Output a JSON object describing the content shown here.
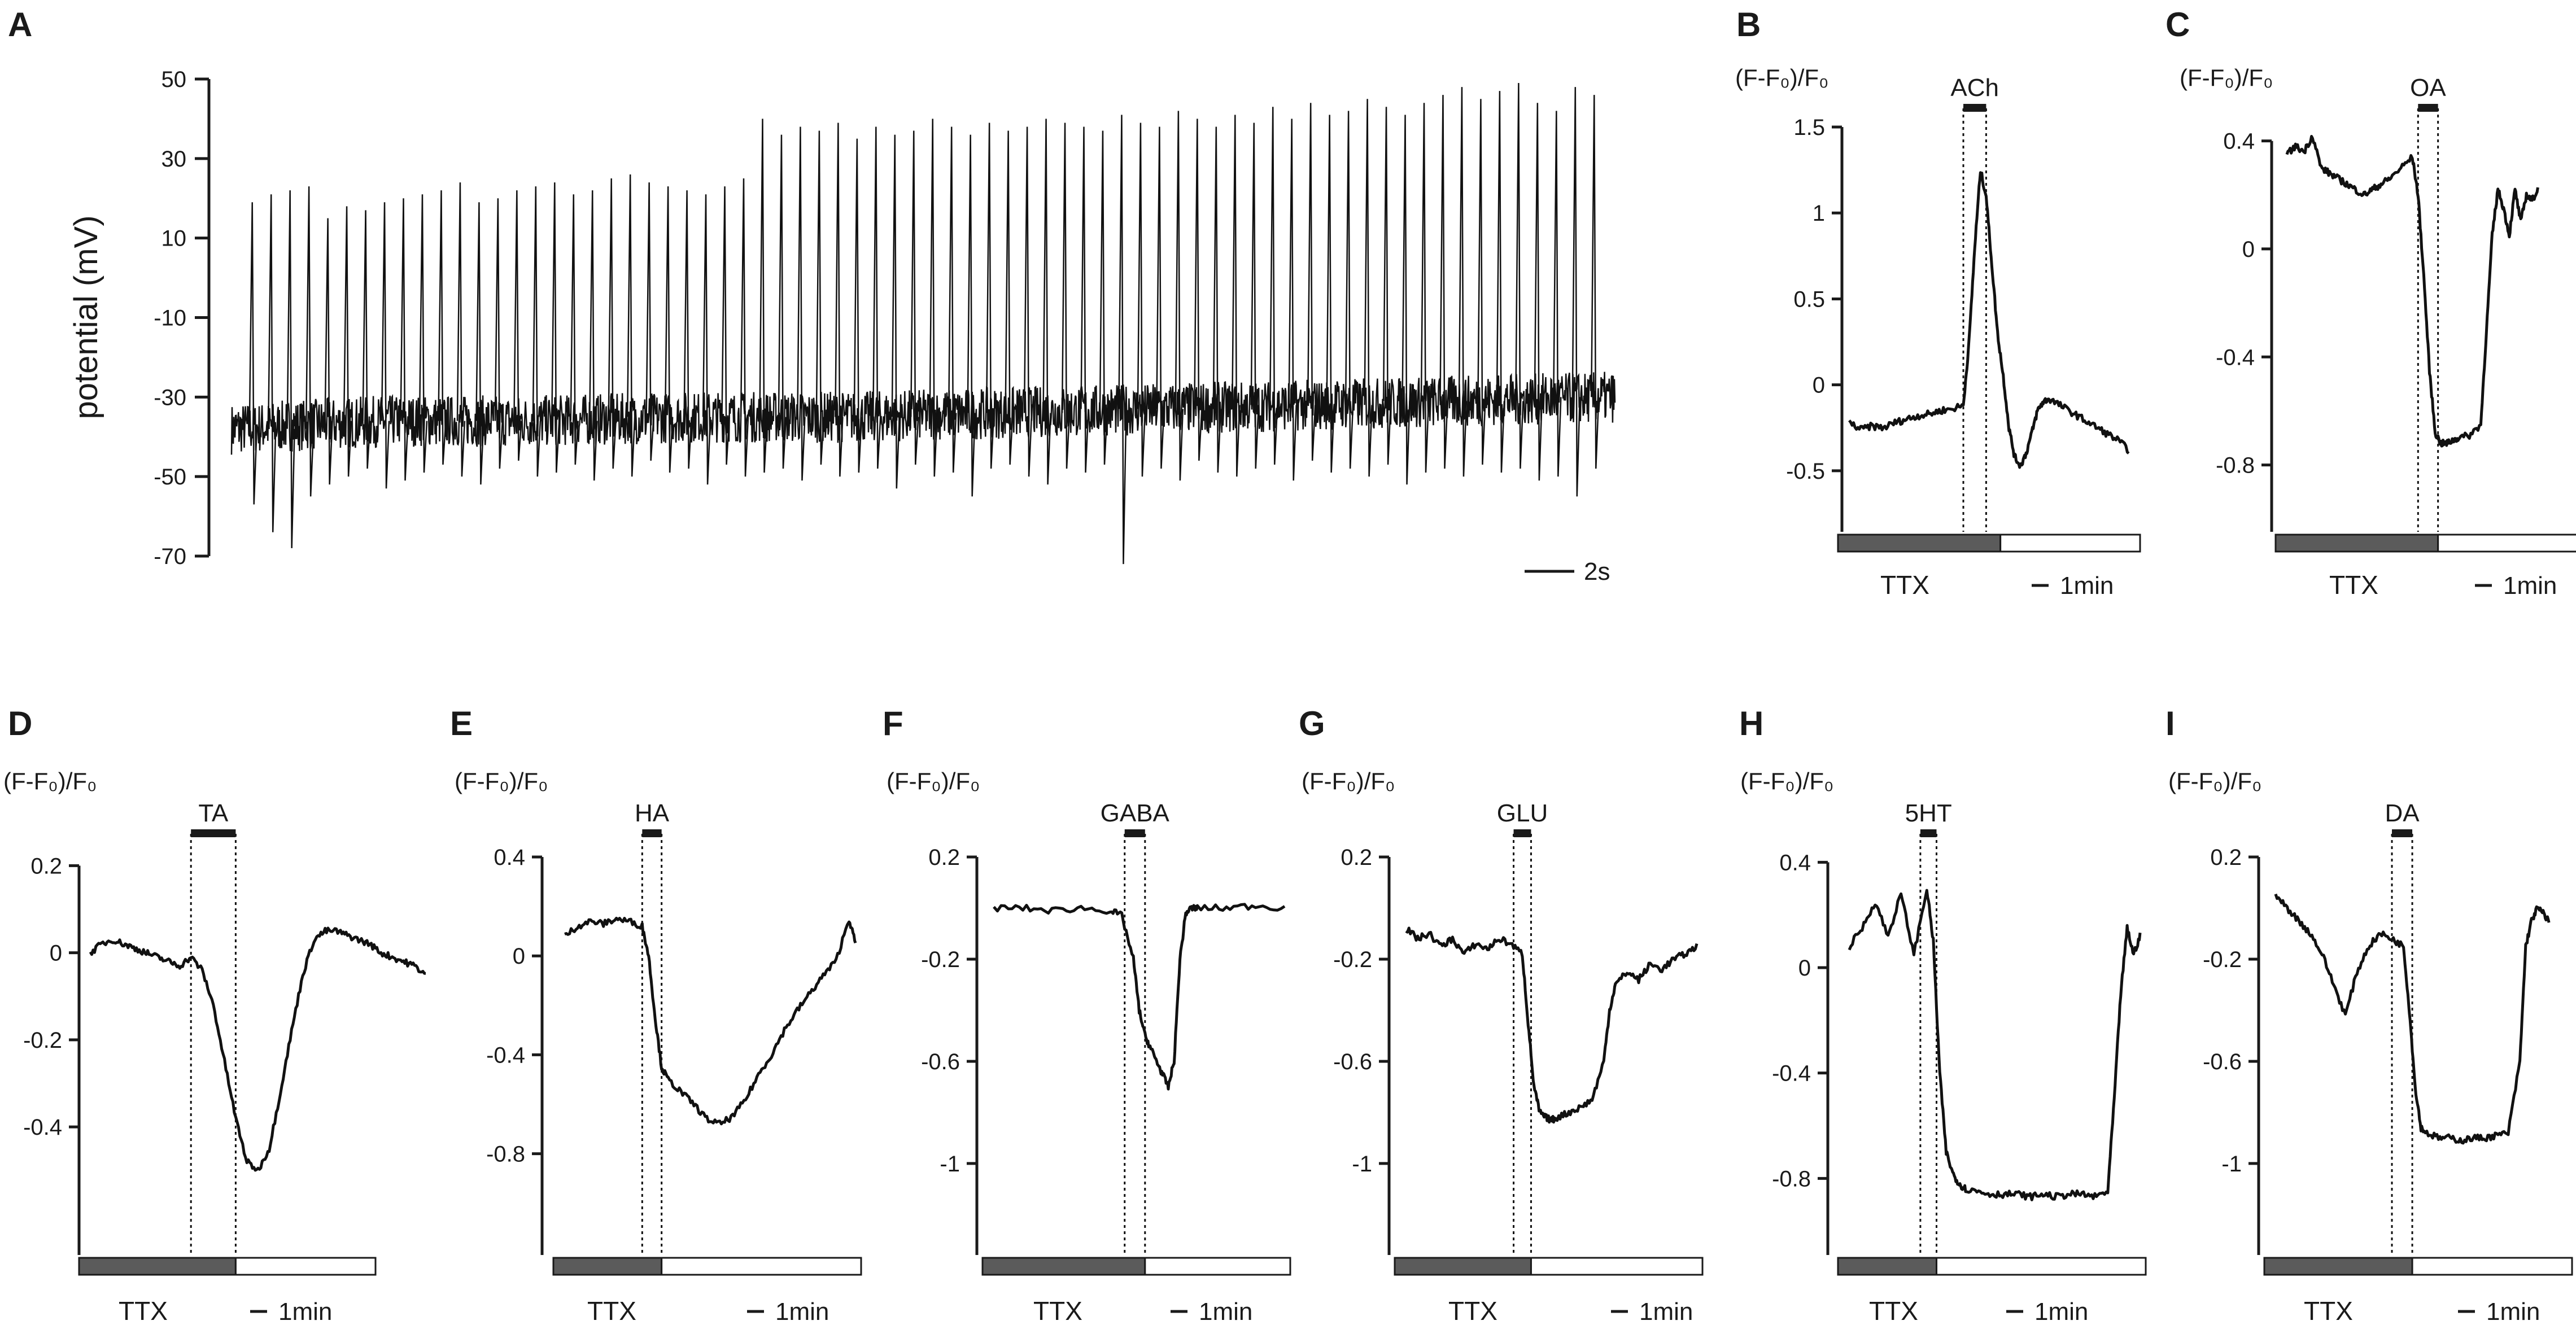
{
  "chart_data": [
    {
      "panel": "A",
      "type": "line",
      "ylabel": "potential (mV)",
      "yticks": [
        50,
        30,
        10,
        -10,
        -30,
        -50,
        -70
      ],
      "ylim": [
        -70,
        50
      ],
      "scale_bar": "2s",
      "baseline_mV": [
        -38,
        -36,
        -36,
        -35,
        -35,
        -34,
        -33,
        -32,
        -31,
        -30
      ],
      "spike_peaks_mV": [
        19,
        21,
        22,
        23,
        15,
        18,
        17,
        19,
        20,
        21,
        22,
        24,
        19,
        20,
        22,
        23,
        24,
        21,
        22,
        25,
        26,
        24,
        23,
        22,
        21,
        23,
        25,
        40,
        36,
        38,
        37,
        39,
        35,
        38,
        36,
        37,
        40,
        38,
        36,
        39,
        37,
        38,
        40,
        39,
        38,
        37,
        41,
        39,
        38,
        42,
        40,
        38,
        41,
        39,
        43,
        40,
        44,
        41,
        42,
        45,
        43,
        41,
        44,
        46,
        48,
        45,
        47,
        49,
        44,
        42,
        48,
        46
      ],
      "spike_troughs_mV": [
        -57,
        -64,
        -68,
        -55,
        -52,
        -50,
        -48,
        -53,
        -51,
        -49,
        -47,
        -50,
        -52,
        -48,
        -46,
        -50,
        -49,
        -47,
        -51,
        -48,
        -50,
        -46,
        -49,
        -48,
        -52,
        -47,
        -50,
        -49,
        -48,
        -51,
        -47,
        -50,
        -49,
        -48,
        -53,
        -47,
        -50,
        -49,
        -55,
        -48,
        -47,
        -50,
        -52,
        -48,
        -49,
        -47,
        -72,
        -50,
        -48,
        -51,
        -46,
        -49,
        -50,
        -48,
        -47,
        -51,
        -46,
        -49,
        -48,
        -50,
        -47,
        -52,
        -49,
        -48,
        -50,
        -47,
        -49,
        -48,
        -51,
        -50,
        -55,
        -48
      ]
    },
    {
      "panel": "B",
      "type": "line",
      "ylabel": "(F-F₀)/F₀",
      "drug": "ACh",
      "yticks": [
        1.5,
        1.0,
        0.5,
        0,
        -0.5
      ],
      "ylim": [
        -0.75,
        1.5
      ],
      "ttx_label": "TTX",
      "scale_bar": "1min",
      "t": [
        0,
        4,
        8,
        12,
        16,
        20,
        24,
        28,
        32,
        36,
        40,
        42,
        44,
        46,
        48,
        50,
        52,
        54,
        56,
        58,
        60,
        62,
        64,
        66,
        68,
        70,
        74,
        78,
        82,
        86,
        90,
        94,
        98
      ],
      "y": [
        -0.22,
        -0.26,
        -0.24,
        -0.25,
        -0.22,
        -0.2,
        -0.18,
        -0.17,
        -0.15,
        -0.14,
        -0.12,
        0.25,
        0.8,
        1.25,
        1.1,
        0.7,
        0.3,
        0.05,
        -0.25,
        -0.42,
        -0.47,
        -0.4,
        -0.28,
        -0.15,
        -0.1,
        -0.08,
        -0.12,
        -0.16,
        -0.2,
        -0.24,
        -0.28,
        -0.32,
        -0.38
      ],
      "drug_window": [
        40,
        48
      ],
      "ttx_end": 53,
      "t_max": 100
    },
    {
      "panel": "C",
      "type": "line",
      "ylabel": "(F-F₀)/F₀",
      "drug": "OA",
      "yticks": [
        0.4,
        0,
        -0.4,
        -0.8
      ],
      "ylim": [
        -0.97,
        0.42
      ],
      "ttx_label": "TTX",
      "scale_bar": "1min",
      "t": [
        0,
        3,
        6,
        9,
        12,
        15,
        18,
        21,
        24,
        27,
        30,
        33,
        36,
        40,
        44,
        46,
        48,
        50,
        52,
        54,
        56,
        58,
        60,
        64,
        68,
        70,
        72,
        74,
        76,
        78,
        80,
        82,
        84,
        86,
        88
      ],
      "y": [
        0.35,
        0.38,
        0.36,
        0.42,
        0.3,
        0.28,
        0.26,
        0.24,
        0.22,
        0.2,
        0.22,
        0.24,
        0.26,
        0.3,
        0.34,
        0.2,
        -0.1,
        -0.45,
        -0.68,
        -0.72,
        -0.72,
        -0.71,
        -0.7,
        -0.69,
        -0.65,
        -0.3,
        0.05,
        0.22,
        0.15,
        0.05,
        0.22,
        0.1,
        0.2,
        0.18,
        0.22
      ],
      "drug_window": [
        46,
        53
      ],
      "ttx_end": 53,
      "t_max": 100
    },
    {
      "panel": "D",
      "type": "line",
      "ylabel": "(F-F₀)/F₀",
      "drug": "TA",
      "yticks": [
        0.2,
        0,
        -0.2,
        -0.4
      ],
      "ylim": [
        -0.58,
        0.22
      ],
      "ttx_label": "TTX",
      "scale_bar": "1min",
      "t": [
        0,
        4,
        8,
        12,
        16,
        20,
        24,
        28,
        32,
        36,
        40,
        44,
        48,
        52,
        56,
        60,
        64,
        68,
        72,
        76,
        80,
        84,
        88,
        92,
        96,
        100,
        104,
        108,
        112,
        116,
        120
      ],
      "y": [
        0.0,
        0.02,
        0.03,
        0.02,
        0.01,
        0.0,
        -0.01,
        -0.02,
        -0.03,
        -0.01,
        -0.04,
        -0.12,
        -0.25,
        -0.38,
        -0.48,
        -0.5,
        -0.45,
        -0.32,
        -0.18,
        -0.05,
        0.03,
        0.05,
        0.05,
        0.04,
        0.03,
        0.02,
        0.0,
        -0.01,
        -0.02,
        -0.03,
        -0.05
      ],
      "drug_window": [
        36,
        52
      ],
      "ttx_end": 52,
      "t_max": 100
    },
    {
      "panel": "E",
      "type": "line",
      "ylabel": "(F-F₀)/F₀",
      "drug": "HA",
      "yticks": [
        0.4,
        0,
        -0.4,
        -0.8
      ],
      "ylim": [
        -1.02,
        0.4
      ],
      "ttx_label": "TTX",
      "scale_bar": "1min",
      "t": [
        0,
        4,
        8,
        12,
        16,
        20,
        24,
        26,
        28,
        30,
        32,
        36,
        40,
        44,
        48,
        52,
        56,
        60,
        64,
        68,
        72,
        76,
        80,
        84,
        88,
        90
      ],
      "y": [
        0.08,
        0.12,
        0.14,
        0.13,
        0.15,
        0.14,
        0.12,
        0.0,
        -0.25,
        -0.45,
        -0.5,
        -0.55,
        -0.6,
        -0.66,
        -0.68,
        -0.65,
        -0.58,
        -0.48,
        -0.4,
        -0.3,
        -0.22,
        -0.15,
        -0.08,
        -0.02,
        0.15,
        0.05
      ],
      "drug_window": [
        24,
        30
      ],
      "ttx_end": 30,
      "t_max": 90
    },
    {
      "panel": "F",
      "type": "line",
      "ylabel": "(F-F₀)/F₀",
      "drug": "GABA",
      "yticks": [
        0.2,
        -0.2,
        -0.6,
        -1.0
      ],
      "ylim": [
        -1.23,
        0.2
      ],
      "ttx_label": "TTX",
      "scale_bar": "1min",
      "t": [
        0,
        10,
        20,
        30,
        40,
        44,
        48,
        50,
        52,
        54,
        56,
        58,
        60,
        62,
        64,
        66,
        68,
        70,
        80,
        90,
        100
      ],
      "y": [
        0.0,
        0.0,
        -0.01,
        0.0,
        -0.01,
        -0.03,
        -0.2,
        -0.4,
        -0.5,
        -0.55,
        -0.6,
        -0.65,
        -0.7,
        -0.6,
        -0.2,
        -0.02,
        0.0,
        0.0,
        0.0,
        0.01,
        0.0
      ],
      "drug_window": [
        45,
        52
      ],
      "ttx_end": 52,
      "t_max": 100
    },
    {
      "panel": "G",
      "type": "line",
      "ylabel": "(F-F₀)/F₀",
      "drug": "GLU",
      "yticks": [
        0.2,
        -0.2,
        -0.6,
        -1.0
      ],
      "ylim": [
        -1.23,
        0.2
      ],
      "ttx_label": "TTX",
      "scale_bar": "1min",
      "t": [
        0,
        4,
        8,
        12,
        16,
        20,
        24,
        28,
        32,
        36,
        40,
        42,
        44,
        46,
        48,
        50,
        52,
        56,
        60,
        64,
        68,
        70,
        72,
        76,
        80,
        84,
        88,
        92,
        96,
        100
      ],
      "y": [
        -0.08,
        -0.12,
        -0.1,
        -0.15,
        -0.12,
        -0.18,
        -0.14,
        -0.16,
        -0.12,
        -0.14,
        -0.18,
        -0.45,
        -0.7,
        -0.8,
        -0.82,
        -0.83,
        -0.82,
        -0.8,
        -0.78,
        -0.75,
        -0.6,
        -0.4,
        -0.3,
        -0.25,
        -0.28,
        -0.22,
        -0.24,
        -0.2,
        -0.18,
        -0.15
      ],
      "drug_window": [
        37,
        43
      ],
      "ttx_end": 43,
      "t_max": 100
    },
    {
      "panel": "H",
      "type": "line",
      "ylabel": "(F-F₀)/F₀",
      "drug": "5HT",
      "yticks": [
        0.4,
        0,
        -0.4,
        -0.8
      ],
      "ylim": [
        -1.02,
        0.42
      ],
      "ttx_label": "TTX",
      "scale_bar": "1min",
      "t": [
        0,
        4,
        8,
        12,
        16,
        20,
        24,
        26,
        28,
        30,
        32,
        34,
        36,
        40,
        44,
        48,
        52,
        56,
        60,
        64,
        68,
        72,
        76,
        80,
        82,
        84,
        86,
        88,
        90
      ],
      "y": [
        0.08,
        0.15,
        0.25,
        0.12,
        0.28,
        0.05,
        0.3,
        0.1,
        -0.4,
        -0.7,
        -0.78,
        -0.82,
        -0.84,
        -0.85,
        -0.86,
        -0.86,
        -0.86,
        -0.87,
        -0.86,
        -0.87,
        -0.86,
        -0.86,
        -0.87,
        -0.85,
        -0.5,
        -0.1,
        0.15,
        0.05,
        0.12
      ],
      "drug_window": [
        22,
        27
      ],
      "ttx_end": 27,
      "t_max": 90
    },
    {
      "panel": "I",
      "type": "line",
      "ylabel": "(F-F₀)/F₀",
      "drug": "DA",
      "yticks": [
        0.2,
        -0.2,
        -0.6,
        -1.0
      ],
      "ylim": [
        -1.23,
        0.2
      ],
      "ttx_label": "TTX",
      "scale_bar": "1min",
      "t": [
        0,
        4,
        8,
        12,
        16,
        20,
        24,
        28,
        32,
        36,
        40,
        44,
        46,
        48,
        50,
        52,
        56,
        60,
        64,
        68,
        72,
        76,
        80,
        84,
        86,
        88,
        90,
        92,
        94
      ],
      "y": [
        0.05,
        0.0,
        -0.05,
        -0.1,
        -0.18,
        -0.3,
        -0.42,
        -0.25,
        -0.15,
        -0.1,
        -0.12,
        -0.15,
        -0.4,
        -0.7,
        -0.86,
        -0.88,
        -0.9,
        -0.9,
        -0.91,
        -0.9,
        -0.9,
        -0.89,
        -0.88,
        -0.6,
        -0.15,
        -0.05,
        0.0,
        -0.02,
        -0.05
      ],
      "drug_window": [
        40,
        47
      ],
      "ttx_end": 47,
      "t_max": 100
    }
  ]
}
